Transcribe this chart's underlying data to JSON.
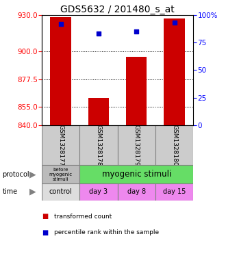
{
  "title": "GDS5632 / 201480_s_at",
  "samples": [
    "GSM1328177",
    "GSM1328178",
    "GSM1328179",
    "GSM1328180"
  ],
  "bar_values": [
    928,
    862,
    896,
    927
  ],
  "percentile_values": [
    92,
    83,
    85,
    93
  ],
  "bar_bottom": 840,
  "ylim": [
    840,
    930
  ],
  "yticks_left": [
    840,
    855,
    877.5,
    900,
    930
  ],
  "yticks_right": [
    0,
    25,
    50,
    75,
    100
  ],
  "bar_color": "#cc0000",
  "dot_color": "#0000cc",
  "background_color": "#ffffff",
  "plot_bg_color": "#ffffff",
  "title_fontsize": 10,
  "protocol_labels": [
    "before\nmyogenic\nstimuli",
    "myogenic stimuli"
  ],
  "protocol_colors": [
    "#bbbbbb",
    "#66dd66"
  ],
  "time_labels": [
    "control",
    "day 3",
    "day 8",
    "day 15"
  ],
  "time_colors": [
    "#dddddd",
    "#ee88ee",
    "#ee88ee",
    "#ee88ee"
  ],
  "legend_items": [
    "transformed count",
    "percentile rank within the sample"
  ],
  "legend_colors": [
    "#cc0000",
    "#0000cc"
  ],
  "gsm_bg": "#cccccc"
}
